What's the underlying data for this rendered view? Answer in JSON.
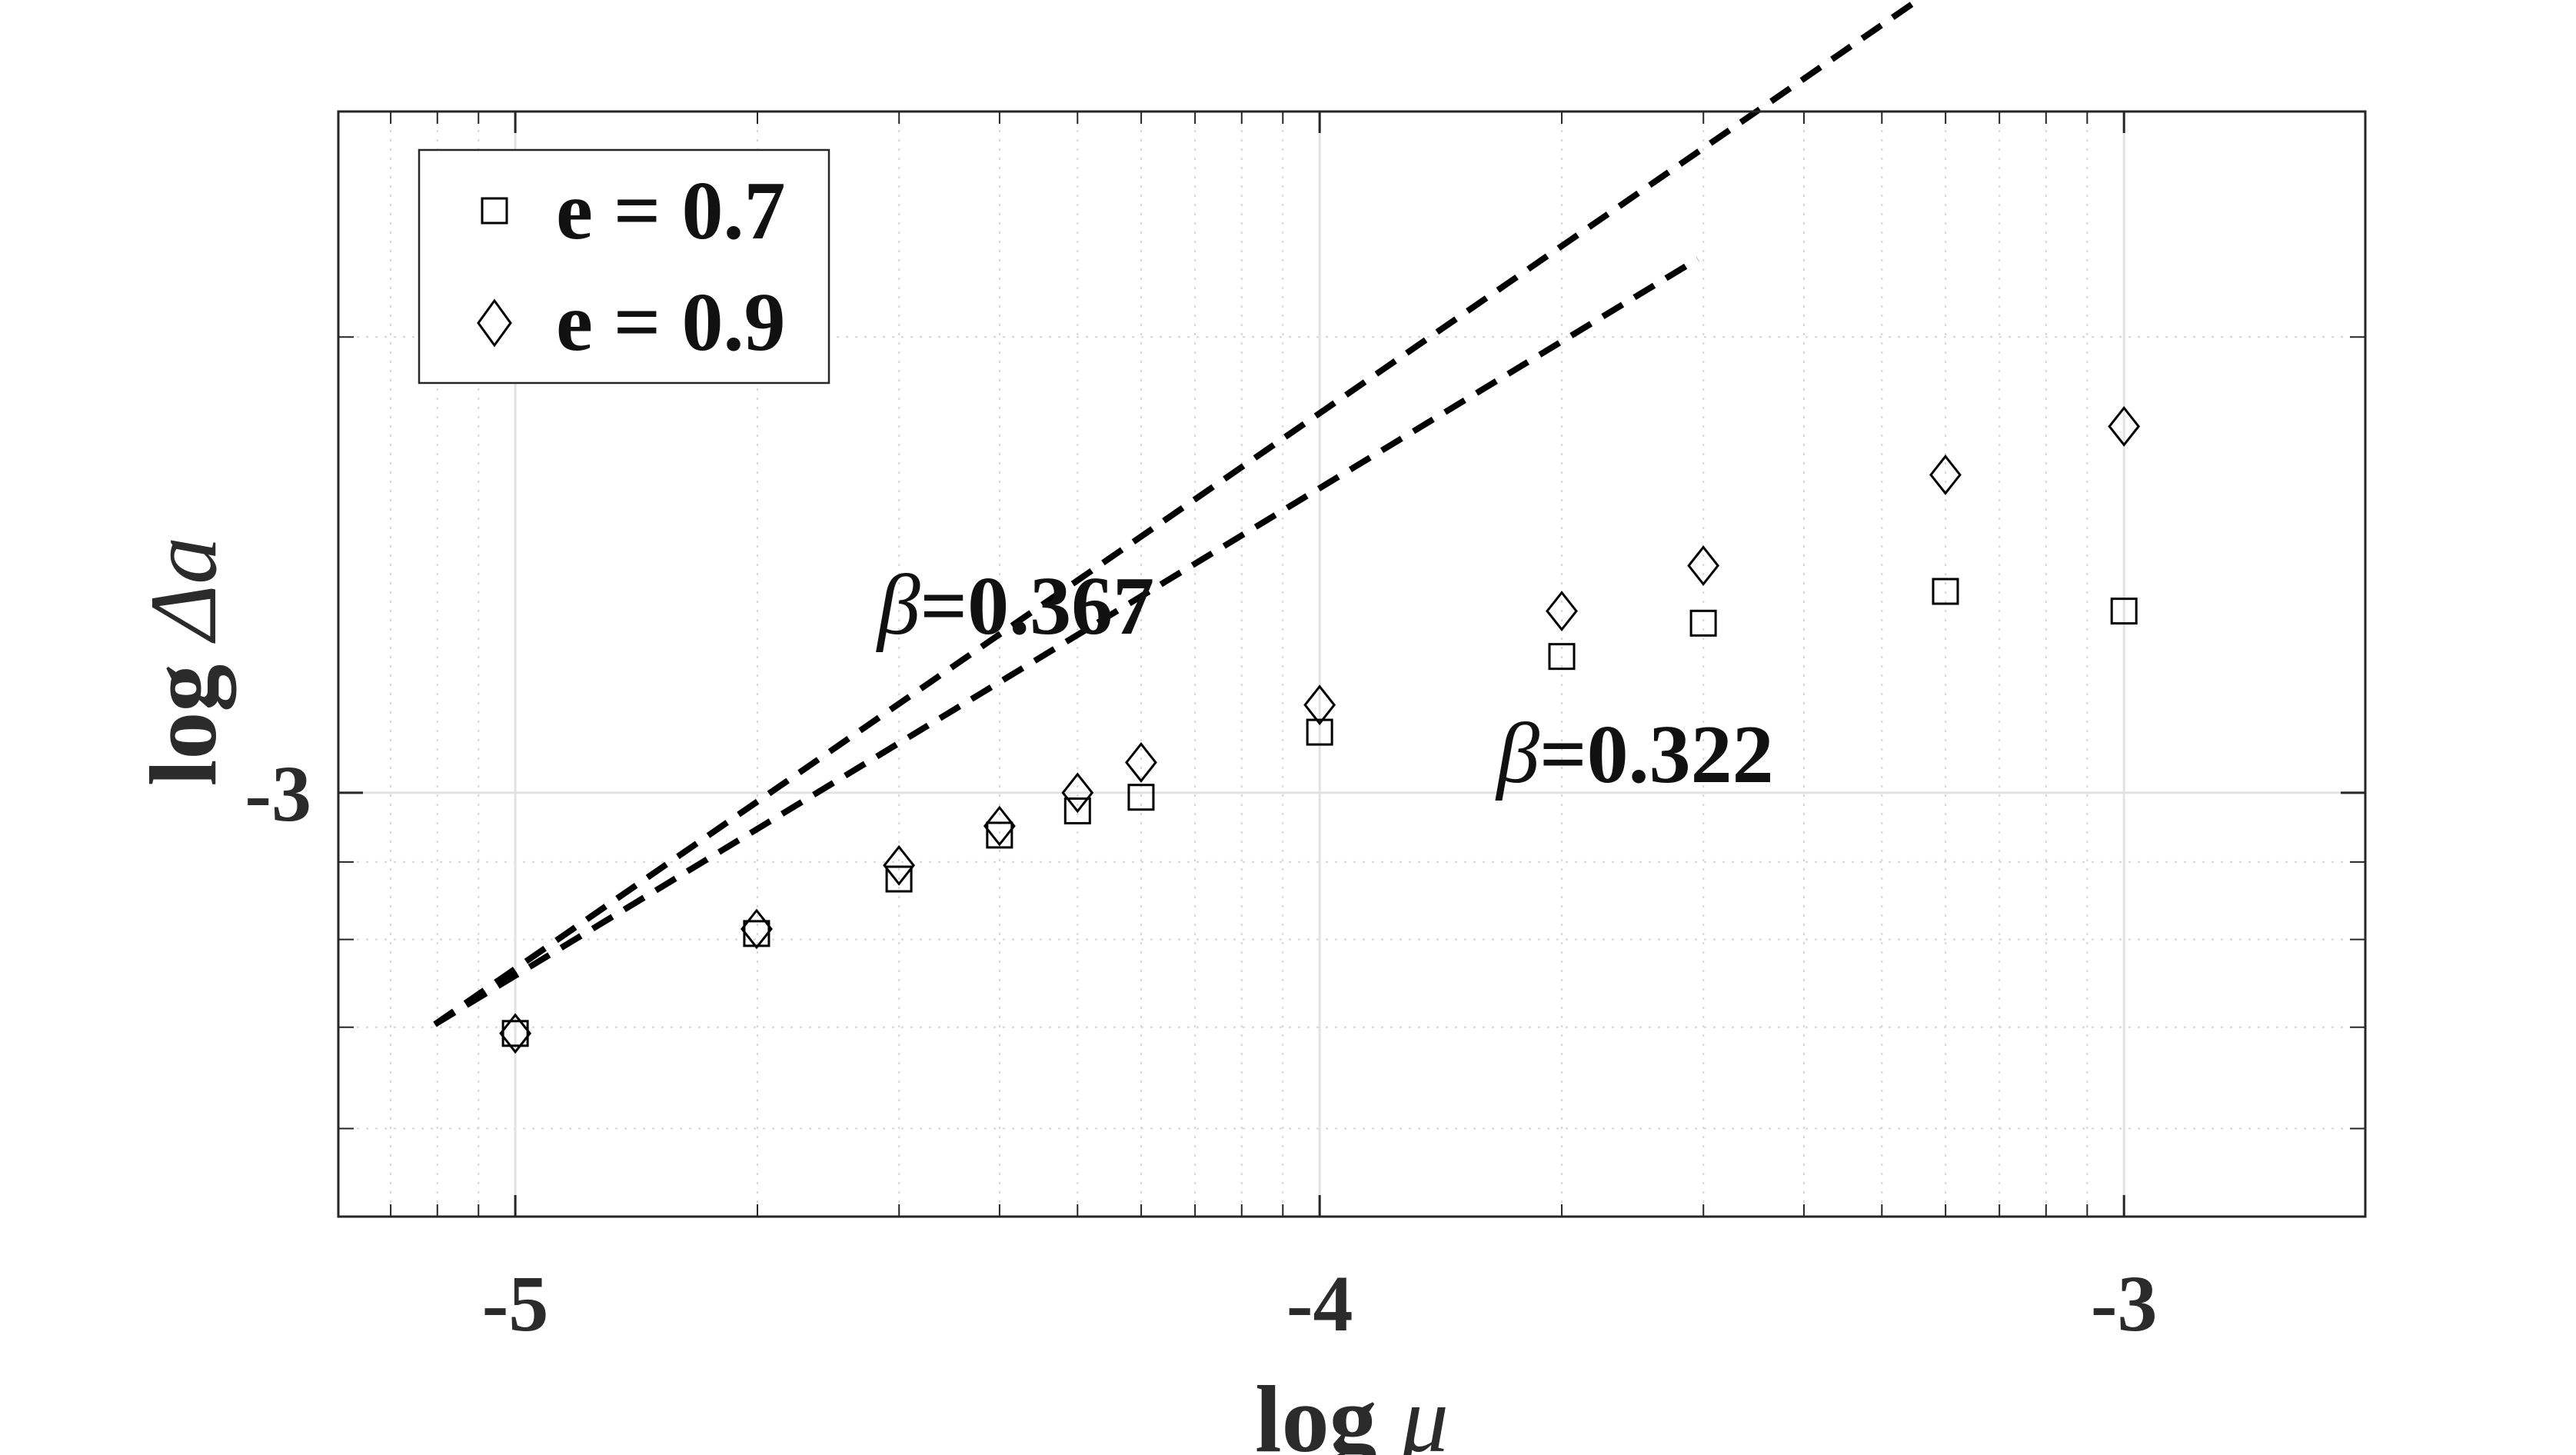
{
  "chart_data": {
    "type": "scatter",
    "title": "",
    "xlabel": {
      "prefix": "log ",
      "symbol": "μ"
    },
    "ylabel": {
      "prefix": "log ",
      "symbol": "Δa"
    },
    "x_scale": "linear",
    "y_scale": "linear",
    "xlim": [
      -5.22,
      -2.7
    ],
    "ylim": [
      -3.28,
      -2.55
    ],
    "x_ticks": [
      -5,
      -4,
      -3
    ],
    "x_tick_labels": [
      "-5",
      "-4",
      "-3"
    ],
    "y_ticks": [
      -3
    ],
    "y_tick_labels": [
      "-3"
    ],
    "grid": true,
    "legend": "top-left",
    "series": [
      {
        "name": "e = 0.7",
        "marker": "square",
        "x": [
          -5.0,
          -4.7,
          -4.523,
          -4.398,
          -4.301,
          -4.222,
          -4.0,
          -3.699,
          -3.523,
          -3.222,
          -3.0
        ],
        "y": [
          -3.159,
          -3.093,
          -3.057,
          -3.028,
          -3.012,
          -3.003,
          -2.96,
          -2.91,
          -2.888,
          -2.867,
          -2.88
        ]
      },
      {
        "name": "e = 0.9",
        "marker": "diamond",
        "x": [
          -5.0,
          -4.7,
          -4.523,
          -4.398,
          -4.301,
          -4.222,
          -4.0,
          -3.699,
          -3.523,
          -3.222,
          -3.0
        ],
        "y": [
          -3.159,
          -3.09,
          -3.048,
          -3.022,
          -3.0,
          -2.98,
          -2.942,
          -2.88,
          -2.85,
          -2.79,
          -2.758
        ]
      }
    ],
    "fits": [
      {
        "slope": 0.367,
        "x_range": [
          -5.1,
          -2.92
        ],
        "y_start": -3.153
      },
      {
        "slope": 0.322,
        "x_range": [
          -5.1,
          -3.53
        ],
        "y_start": -3.153
      }
    ],
    "annotations": [
      {
        "symbol": "β",
        "text": "=0.367",
        "x": -4.55,
        "y": -2.895
      },
      {
        "symbol": "β",
        "text": "=0.322",
        "x": -3.78,
        "y": -2.993
      }
    ]
  }
}
